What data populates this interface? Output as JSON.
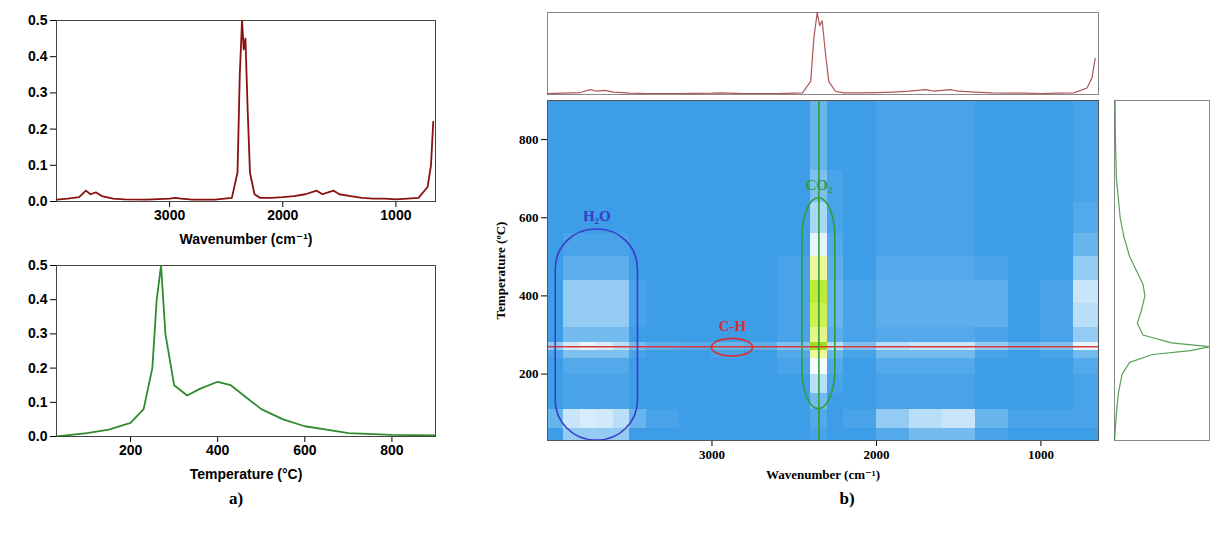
{
  "chart_data": [
    {
      "type": "line",
      "panel": "a)",
      "x_label": "Wavenumber (cm⁻¹)",
      "x": [
        4000,
        3900,
        3800,
        3740,
        3700,
        3650,
        3600,
        3500,
        3400,
        3200,
        3000,
        2950,
        2900,
        2800,
        2600,
        2450,
        2400,
        2380,
        2360,
        2345,
        2330,
        2310,
        2290,
        2250,
        2200,
        2100,
        2000,
        1900,
        1800,
        1700,
        1650,
        1600,
        1550,
        1500,
        1400,
        1300,
        1200,
        1100,
        1000,
        900,
        800,
        720,
        690,
        670
      ],
      "series": [
        {
          "color": "#8b1010",
          "values": [
            0.005,
            0.008,
            0.012,
            0.03,
            0.02,
            0.025,
            0.015,
            0.008,
            0.006,
            0.005,
            0.008,
            0.01,
            0.008,
            0.005,
            0.005,
            0.01,
            0.08,
            0.35,
            0.5,
            0.42,
            0.45,
            0.25,
            0.08,
            0.02,
            0.01,
            0.01,
            0.012,
            0.015,
            0.02,
            0.03,
            0.02,
            0.025,
            0.03,
            0.02,
            0.015,
            0.01,
            0.008,
            0.008,
            0.006,
            0.008,
            0.01,
            0.04,
            0.1,
            0.22
          ]
        }
      ],
      "xlim": [
        4000,
        650
      ],
      "xticks": [
        3000,
        2000,
        1000
      ],
      "ylim": [
        0,
        0.5
      ],
      "yticks": [
        {
          "value": 0,
          "label": "0.0"
        },
        0.1,
        0.2,
        0.3,
        0.4,
        0.5
      ]
    },
    {
      "type": "line",
      "x_label": "Temperature (°C)",
      "x": [
        30,
        100,
        150,
        200,
        230,
        250,
        260,
        270,
        280,
        300,
        330,
        360,
        400,
        430,
        460,
        500,
        550,
        600,
        650,
        700,
        800,
        900
      ],
      "series": [
        {
          "color": "#2e8b2e",
          "values": [
            0,
            0.01,
            0.02,
            0.04,
            0.08,
            0.2,
            0.4,
            0.5,
            0.3,
            0.15,
            0.12,
            0.14,
            0.16,
            0.15,
            0.12,
            0.08,
            0.05,
            0.03,
            0.02,
            0.01,
            0.005,
            0.003
          ]
        }
      ],
      "xlim": [
        30,
        900
      ],
      "xticks": [
        200,
        400,
        600,
        800
      ],
      "ylim": [
        0,
        0.5
      ],
      "yticks": [
        {
          "value": 0,
          "label": "0.0"
        },
        0.1,
        0.2,
        0.3,
        0.4,
        0.5
      ]
    },
    {
      "type": "heatmap",
      "panel": "b)",
      "x_label": "Wavenumber (cm⁻¹)",
      "y_label": "Temperature (ºC)",
      "xlim": [
        4000,
        650
      ],
      "xticks": [
        3000,
        2000,
        1000
      ],
      "ylim": [
        30,
        900
      ],
      "yticks": [
        200,
        400,
        600,
        800
      ],
      "value_range": [
        0,
        0.5
      ],
      "wavenumber_edges": [
        4000,
        3900,
        3800,
        3700,
        3600,
        3500,
        3400,
        3200,
        3000,
        2800,
        2600,
        2400,
        2300,
        2200,
        2000,
        1800,
        1600,
        1400,
        1200,
        1000,
        800,
        650
      ],
      "temperature_edges": [
        30,
        60,
        110,
        150,
        200,
        240,
        260,
        280,
        320,
        380,
        440,
        500,
        560,
        640,
        720,
        800,
        900
      ],
      "cells": [
        [
          0,
          0.08,
          0.08,
          0.08,
          0.08,
          0,
          0,
          0,
          0,
          0,
          0,
          0.01,
          0,
          0,
          0.02,
          0.05,
          0.05,
          0.01,
          0,
          0,
          0
        ],
        [
          0.04,
          0.14,
          0.16,
          0.15,
          0.12,
          0.04,
          0.01,
          0,
          0,
          0,
          0,
          0.02,
          0,
          0.01,
          0.08,
          0.12,
          0.14,
          0.04,
          0.01,
          0.01,
          0.01
        ],
        [
          0,
          0.01,
          0.01,
          0.01,
          0.01,
          0,
          0,
          0,
          0,
          0,
          0,
          0.05,
          0,
          0,
          0.01,
          0.01,
          0.01,
          0,
          0,
          0,
          0.01
        ],
        [
          0,
          0.01,
          0.01,
          0.01,
          0.01,
          0,
          0,
          0,
          0,
          0,
          0,
          0.12,
          0.01,
          0,
          0.01,
          0.01,
          0.01,
          0,
          0,
          0,
          0.01
        ],
        [
          0,
          0.02,
          0.02,
          0.02,
          0.02,
          0,
          0,
          0,
          0,
          0,
          0.01,
          0.2,
          0.02,
          0,
          0.02,
          0.02,
          0.02,
          0,
          0,
          0,
          0.02
        ],
        [
          0.01,
          0.06,
          0.06,
          0.06,
          0.06,
          0.01,
          0,
          0,
          0.01,
          0,
          0.02,
          0.3,
          0.04,
          0.01,
          0.05,
          0.05,
          0.05,
          0.01,
          0,
          0.01,
          0.05
        ],
        [
          0.08,
          0.15,
          0.18,
          0.16,
          0.12,
          0.05,
          0.03,
          0.02,
          0.04,
          0.03,
          0.06,
          0.5,
          0.12,
          0.06,
          0.12,
          0.14,
          0.14,
          0.08,
          0.05,
          0.06,
          0.18
        ],
        [
          0,
          0.05,
          0.05,
          0.05,
          0.05,
          0,
          0,
          0,
          0,
          0,
          0.01,
          0.32,
          0.03,
          0.01,
          0.02,
          0.02,
          0.02,
          0.01,
          0,
          0.01,
          0.08
        ],
        [
          0,
          0.08,
          0.08,
          0.08,
          0.08,
          0.01,
          0,
          0,
          0,
          0,
          0.01,
          0.38,
          0.04,
          0.01,
          0.03,
          0.03,
          0.03,
          0.03,
          0,
          0.01,
          0.12
        ],
        [
          0,
          0.08,
          0.08,
          0.08,
          0.08,
          0.01,
          0,
          0,
          0,
          0,
          0.01,
          0.42,
          0.04,
          0.01,
          0.03,
          0.03,
          0.03,
          0.03,
          0,
          0.01,
          0.14
        ],
        [
          0,
          0.03,
          0.03,
          0.03,
          0.03,
          0,
          0,
          0,
          0,
          0,
          0.01,
          0.3,
          0.03,
          0,
          0.02,
          0.02,
          0.02,
          0.01,
          0,
          0,
          0.08
        ],
        [
          0,
          0.01,
          0.01,
          0.01,
          0.01,
          0,
          0,
          0,
          0,
          0,
          0,
          0.18,
          0.02,
          0,
          0.01,
          0.01,
          0.01,
          0,
          0,
          0,
          0.04
        ],
        [
          0,
          0,
          0,
          0,
          0,
          0,
          0,
          0,
          0,
          0,
          0,
          0.1,
          0.01,
          0,
          0.01,
          0.01,
          0.01,
          0,
          0,
          0,
          0.02
        ],
        [
          0,
          0,
          0,
          0,
          0,
          0,
          0,
          0,
          0,
          0,
          0,
          0.06,
          0.01,
          0,
          0.01,
          0.01,
          0.01,
          0,
          0,
          0,
          0.01
        ],
        [
          0,
          0,
          0,
          0,
          0,
          0,
          0,
          0,
          0,
          0,
          0,
          0.04,
          0,
          0,
          0.01,
          0.01,
          0.01,
          0,
          0,
          0,
          0.01
        ],
        [
          0,
          0,
          0,
          0,
          0,
          0,
          0,
          0,
          0,
          0,
          0,
          0.04,
          0,
          0,
          0.01,
          0.01,
          0.01,
          0,
          0,
          0,
          0.01
        ]
      ],
      "cut_temperature": {
        "value": 270,
        "color": "#d83a3a"
      },
      "cut_wavenumber": {
        "value": 2350,
        "color": "#2e9e3a"
      },
      "annotations": [
        {
          "text": "H₂O",
          "color": "#3c3cc8",
          "box": {
            "wavenumber": [
              3950,
              3450
            ],
            "temperature": [
              30,
              570
            ]
          }
        },
        {
          "text": "C-H",
          "color": "#d83030",
          "box": {
            "wavenumber": [
              3000,
              2750
            ],
            "temperature": [
              245,
              290
            ]
          }
        },
        {
          "text": "CO₂",
          "color": "#2e9e3a",
          "box": {
            "wavenumber": [
              2450,
              2250
            ],
            "temperature": [
              110,
              650
            ]
          }
        }
      ]
    }
  ]
}
